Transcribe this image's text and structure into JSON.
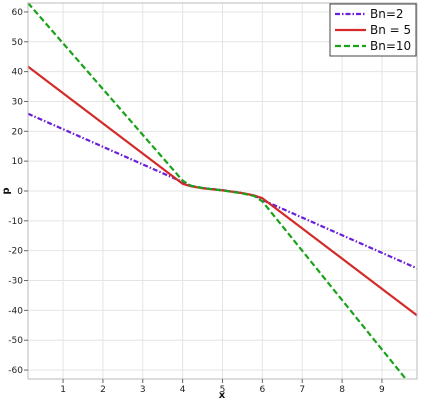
{
  "chart_data": {
    "type": "line",
    "xlabel": "x",
    "ylabel": "p",
    "xlim": [
      0.12,
      9.88
    ],
    "ylim": [
      -63,
      63
    ],
    "x_ticks": [
      1,
      2,
      3,
      4,
      5,
      6,
      7,
      8,
      9
    ],
    "y_ticks": [
      60,
      50,
      40,
      30,
      20,
      10,
      0,
      -10,
      -20,
      -30,
      -40,
      -50,
      -60
    ],
    "grid": true,
    "legend_position": "top-right",
    "series": [
      {
        "name": "Bn=2",
        "color": "#6a1fd8",
        "style": "dashdot",
        "x": [
          0.12,
          4.0,
          4.2,
          4.5,
          5.0,
          5.5,
          5.8,
          6.0,
          9.88
        ],
        "y": [
          25.9,
          3.0,
          1.7,
          1.0,
          0.3,
          -0.7,
          -1.6,
          -3.0,
          -25.9
        ]
      },
      {
        "name": "Bn = 5",
        "color": "#d42a2a",
        "style": "solid",
        "x": [
          0.12,
          4.0,
          4.2,
          4.5,
          5.0,
          5.5,
          5.8,
          6.0,
          9.88
        ],
        "y": [
          41.7,
          2.4,
          1.6,
          0.9,
          0.2,
          -0.7,
          -1.5,
          -2.4,
          -41.7
        ]
      },
      {
        "name": "Bn=10",
        "color": "#1aa31a",
        "style": "dashed",
        "x": [
          0.12,
          4.0,
          4.2,
          4.5,
          5.0,
          5.5,
          5.8,
          6.0,
          9.6
        ],
        "y": [
          63.0,
          3.5,
          1.8,
          1.0,
          0.2,
          -0.8,
          -1.7,
          -3.5,
          -63.0
        ]
      }
    ]
  }
}
